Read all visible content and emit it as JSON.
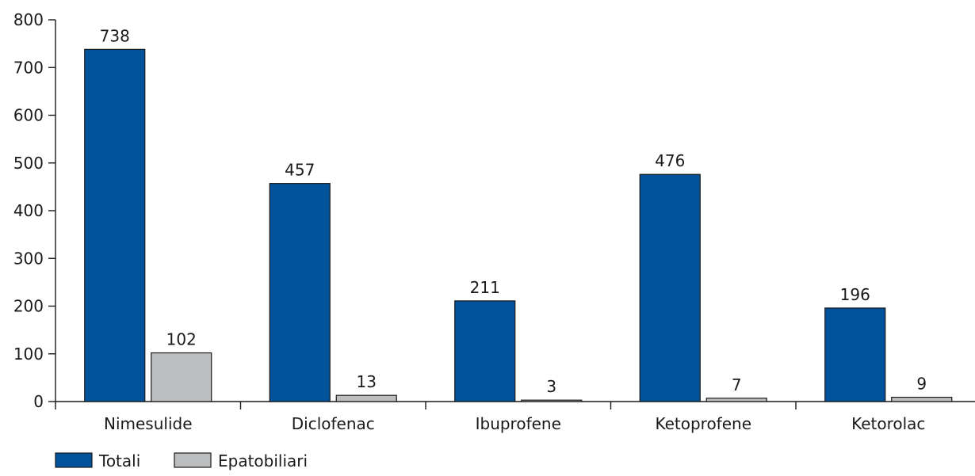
{
  "chart_data": {
    "type": "bar",
    "categories": [
      "Nimesulide",
      "Diclofenac",
      "Ibuprofene",
      "Ketoprofene",
      "Ketorolac"
    ],
    "series": [
      {
        "name": "Totali",
        "values": [
          738,
          457,
          211,
          476,
          196
        ],
        "color": "#00529b"
      },
      {
        "name": "Epatobiliari",
        "values": [
          102,
          13,
          3,
          7,
          9
        ],
        "color": "#bcbec0"
      }
    ],
    "title": "",
    "xlabel": "",
    "ylabel": "",
    "ylim": [
      0,
      800
    ],
    "yticks": [
      0,
      100,
      200,
      300,
      400,
      500,
      600,
      700,
      800
    ],
    "grid": false,
    "legend_position": "bottom-left",
    "bar_outline_color": "#1a1a1a"
  }
}
